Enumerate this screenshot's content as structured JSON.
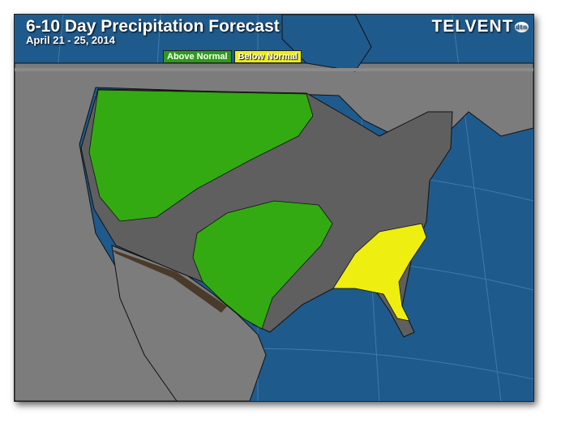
{
  "header": {
    "title": "6-10 Day Precipitation Forecast",
    "date_range": "April 21 - 25, 2014",
    "logo_text": "TELVENT",
    "logo_badge": "dtn"
  },
  "legend": [
    {
      "label": "Above Normal",
      "color": "#2d9a1b"
    },
    {
      "label": "Below Normal",
      "color": "#eeee10"
    }
  ],
  "colors": {
    "ocean": "#1f5a8c",
    "land": "#7c7c7c",
    "us": "#5f5f5f",
    "above_normal": "#33aa11",
    "below_normal": "#eeee10",
    "border_region": "#4a3a2a"
  }
}
